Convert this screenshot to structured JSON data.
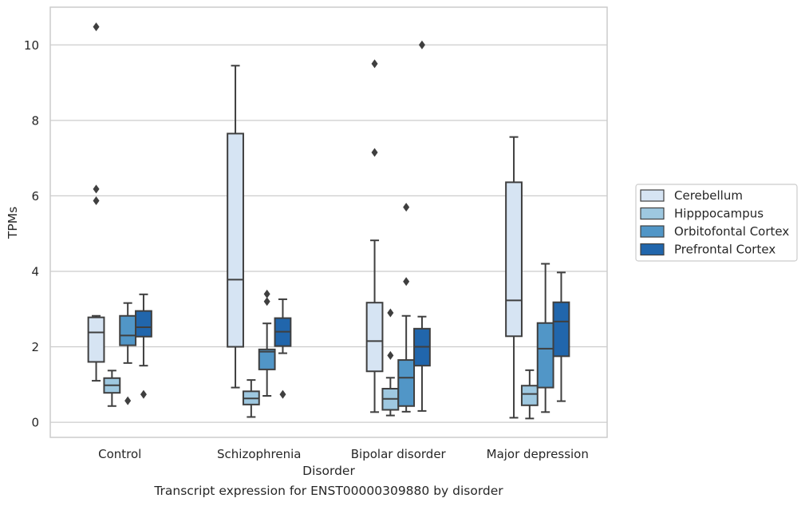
{
  "chart_data": {
    "type": "box",
    "xlabel": "Disorder",
    "ylabel": "TPMs",
    "caption": "Transcript expression for ENST00000309880 by disorder",
    "ylim": [
      -0.4,
      11.0
    ],
    "yticks": [
      0,
      2,
      4,
      6,
      8,
      10
    ],
    "grid": "horizontal",
    "legend_position": "right",
    "categories": [
      "Control",
      "Schizophrenia",
      "Bipolar disorder",
      "Major depression"
    ],
    "series": [
      {
        "name": "Cerebellum",
        "color": "#d6e4f3",
        "boxes": [
          {
            "min": 1.1,
            "q1": 1.6,
            "median": 2.38,
            "q3": 2.78,
            "max": 2.82,
            "outliers": [
              5.87,
              6.18,
              10.48
            ]
          },
          {
            "min": 0.92,
            "q1": 2.0,
            "median": 3.78,
            "q3": 7.65,
            "max": 9.45,
            "outliers": []
          },
          {
            "min": 0.27,
            "q1": 1.35,
            "median": 2.15,
            "q3": 3.17,
            "max": 4.82,
            "outliers": [
              7.15,
              9.5
            ]
          },
          {
            "min": 0.12,
            "q1": 2.28,
            "median": 3.23,
            "q3": 6.36,
            "max": 7.56,
            "outliers": []
          }
        ]
      },
      {
        "name": "Hipppocampus",
        "color": "#9ec8e0",
        "boxes": [
          {
            "min": 0.43,
            "q1": 0.78,
            "median": 0.98,
            "q3": 1.17,
            "max": 1.37,
            "outliers": []
          },
          {
            "min": 0.14,
            "q1": 0.47,
            "median": 0.63,
            "q3": 0.82,
            "max": 1.12,
            "outliers": []
          },
          {
            "min": 0.18,
            "q1": 0.33,
            "median": 0.62,
            "q3": 0.89,
            "max": 1.18,
            "outliers": [
              1.77,
              2.9
            ]
          },
          {
            "min": 0.1,
            "q1": 0.45,
            "median": 0.75,
            "q3": 0.97,
            "max": 1.38,
            "outliers": []
          }
        ]
      },
      {
        "name": "Orbitofontal Cortex",
        "color": "#5196c7",
        "boxes": [
          {
            "min": 1.57,
            "q1": 2.04,
            "median": 2.3,
            "q3": 2.82,
            "max": 3.16,
            "outliers": [
              0.57
            ]
          },
          {
            "min": 0.7,
            "q1": 1.4,
            "median": 1.87,
            "q3": 1.93,
            "max": 2.62,
            "outliers": [
              3.2,
              3.4
            ]
          },
          {
            "min": 0.28,
            "q1": 0.43,
            "median": 1.18,
            "q3": 1.65,
            "max": 2.82,
            "outliers": [
              3.73,
              5.7
            ]
          },
          {
            "min": 0.27,
            "q1": 0.92,
            "median": 1.95,
            "q3": 2.63,
            "max": 4.2,
            "outliers": []
          }
        ]
      },
      {
        "name": "Prefrontal Cortex",
        "color": "#2166ac",
        "boxes": [
          {
            "min": 1.5,
            "q1": 2.27,
            "median": 2.52,
            "q3": 2.95,
            "max": 3.39,
            "outliers": [
              0.74
            ]
          },
          {
            "min": 1.83,
            "q1": 2.02,
            "median": 2.4,
            "q3": 2.76,
            "max": 3.26,
            "outliers": [
              0.74
            ]
          },
          {
            "min": 0.3,
            "q1": 1.5,
            "median": 2.0,
            "q3": 2.48,
            "max": 2.8,
            "outliers": [
              10.0
            ]
          },
          {
            "min": 0.56,
            "q1": 1.75,
            "median": 2.67,
            "q3": 3.18,
            "max": 3.97,
            "outliers": []
          }
        ]
      }
    ]
  }
}
